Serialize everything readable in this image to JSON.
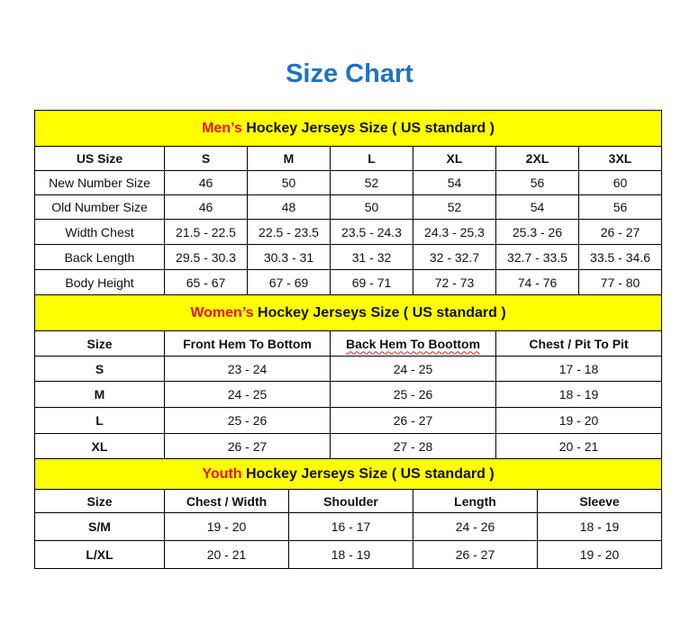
{
  "title": "Size Chart",
  "colors": {
    "title": "#1f72c0",
    "header_bg": "#ffff00",
    "header_accent": "#e8141b"
  },
  "men": {
    "heading_accent": "Men’s",
    "heading_rest": " Hockey Jerseys Size ( US standard )",
    "columns": [
      "US Size",
      "S",
      "M",
      "L",
      "XL",
      "2XL",
      "3XL"
    ],
    "rows": [
      [
        "New Number Size",
        "46",
        "50",
        "52",
        "54",
        "56",
        "60"
      ],
      [
        "Old Number Size",
        "46",
        "48",
        "50",
        "52",
        "54",
        "56"
      ],
      [
        "Width Chest",
        "21.5 - 22.5",
        "22.5 - 23.5",
        "23.5 - 24.3",
        "24.3 - 25.3",
        "25.3 - 26",
        "26 - 27"
      ],
      [
        "Back Length",
        "29.5 - 30.3",
        "30.3 - 31",
        "31 - 32",
        "32 - 32.7",
        "32.7 - 33.5",
        "33.5 - 34.6"
      ],
      [
        "Body Height",
        "65 - 67",
        "67 - 69",
        "69 - 71",
        "72 - 73",
        "74 - 76",
        "77 - 80"
      ]
    ]
  },
  "women": {
    "heading_accent": "Women’s",
    "heading_rest": " Hockey Jerseys Size ( US standard )",
    "columns": [
      "Size",
      "Front Hem To Bottom",
      "Back Hem To Boottom",
      "Chest / Pit To Pit"
    ],
    "rows": [
      [
        "S",
        "23 - 24",
        "24 - 25",
        "17 - 18"
      ],
      [
        "M",
        "24 - 25",
        "25 - 26",
        "18 - 19"
      ],
      [
        "L",
        "25 - 26",
        "26 - 27",
        "19 - 20"
      ],
      [
        "XL",
        "26 - 27",
        "27 - 28",
        "20 - 21"
      ]
    ]
  },
  "youth": {
    "heading_accent": "Youth",
    "heading_rest": " Hockey Jerseys Size ( US standard )",
    "columns": [
      "Size",
      "Chest / Width",
      "Shoulder",
      "Length",
      "Sleeve"
    ],
    "rows": [
      [
        "S/M",
        "19 - 20",
        "16 - 17",
        "24 - 26",
        "18 - 19"
      ],
      [
        "L/XL",
        "20 - 21",
        "18 - 19",
        "26 - 27",
        "19 - 20"
      ]
    ]
  }
}
